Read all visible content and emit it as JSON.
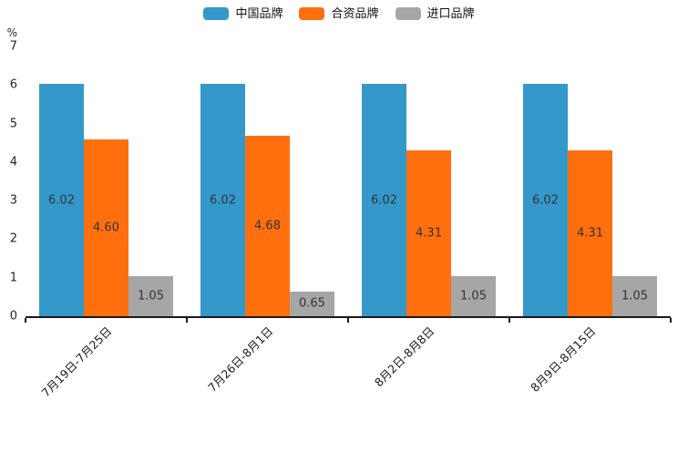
{
  "chart_data": {
    "type": "bar",
    "title": "",
    "xlabel": "",
    "ylabel": "%",
    "ylim": [
      0,
      7
    ],
    "yticks": [
      0,
      1,
      2,
      3,
      4,
      5,
      6,
      7
    ],
    "grid": false,
    "legend_position": "top",
    "bar_value_labels": "inside-center",
    "categories": [
      "7月19日-7月25日",
      "7月26日-8月1日",
      "8月2日-8月8日",
      "8月9日-8月15日"
    ],
    "series": [
      {
        "name": "中国品牌",
        "key": "china-brand",
        "color": "#3498cb",
        "values": [
          6.02,
          6.02,
          6.02,
          6.02
        ],
        "labels": [
          "6.02",
          "6.02",
          "6.02",
          "6.02"
        ]
      },
      {
        "name": "合资品牌",
        "key": "joint-venture-brand",
        "color": "#ff6f0e",
        "values": [
          4.6,
          4.68,
          4.31,
          4.31
        ],
        "labels": [
          "4.60",
          "4.68",
          "4.31",
          "4.31"
        ]
      },
      {
        "name": "进口品牌",
        "key": "import-brand",
        "color": "#a6a6a6",
        "values": [
          1.05,
          0.65,
          1.05,
          1.05
        ],
        "labels": [
          "1.05",
          "0.65",
          "1.05",
          "1.05"
        ]
      }
    ]
  }
}
